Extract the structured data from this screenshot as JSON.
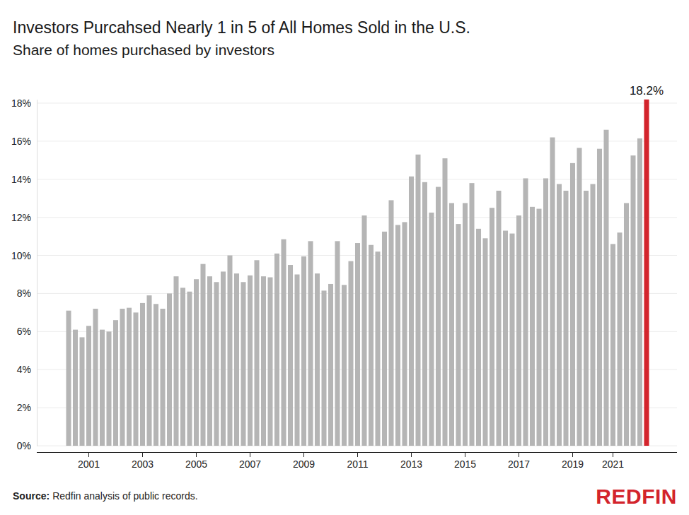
{
  "chart_data": {
    "type": "bar",
    "title": "Investors Purcahsed Nearly 1 in 5 of All Homes Sold in the U.S.",
    "subtitle": "Share of homes purchased by investors",
    "source_label": "Source:",
    "source": "Redfin analysis of public records.",
    "logo": "REDFIN",
    "categories": [
      null,
      null,
      null,
      "2001",
      null,
      null,
      null,
      null,
      null,
      null,
      null,
      "2003",
      null,
      null,
      null,
      null,
      null,
      null,
      null,
      "2005",
      null,
      null,
      null,
      null,
      null,
      null,
      null,
      "2007",
      null,
      null,
      null,
      null,
      null,
      null,
      null,
      "2009",
      null,
      null,
      null,
      null,
      null,
      null,
      null,
      "2011",
      null,
      null,
      null,
      null,
      null,
      null,
      null,
      "2013",
      null,
      null,
      null,
      null,
      null,
      null,
      null,
      "2015",
      null,
      null,
      null,
      null,
      null,
      null,
      null,
      "2017",
      null,
      null,
      null,
      null,
      null,
      null,
      null,
      "2019",
      null,
      null,
      null,
      null,
      null,
      "2021",
      null,
      null,
      null,
      null,
      null
    ],
    "values": [
      7.1,
      6.1,
      5.7,
      6.3,
      7.2,
      6.1,
      6.0,
      6.6,
      7.2,
      7.25,
      7.0,
      7.5,
      7.9,
      7.45,
      7.2,
      8.0,
      8.9,
      8.3,
      8.1,
      8.75,
      9.55,
      8.9,
      8.6,
      9.15,
      10.0,
      9.05,
      8.6,
      8.95,
      9.75,
      8.9,
      8.85,
      10.1,
      10.85,
      9.5,
      9.0,
      9.95,
      10.75,
      9.05,
      8.15,
      8.5,
      10.75,
      8.45,
      9.7,
      10.65,
      12.1,
      10.55,
      10.2,
      11.25,
      12.9,
      11.6,
      11.75,
      14.15,
      15.3,
      13.85,
      12.25,
      13.6,
      15.1,
      12.75,
      11.65,
      12.75,
      13.8,
      11.4,
      10.9,
      12.5,
      13.4,
      11.3,
      11.15,
      12.1,
      14.05,
      12.55,
      12.45,
      14.05,
      16.2,
      13.75,
      13.4,
      14.85,
      15.65,
      13.4,
      13.75,
      15.6,
      16.6,
      10.6,
      11.2,
      12.75,
      15.25,
      16.15,
      18.2
    ],
    "value_labels": [
      null,
      null,
      null,
      null,
      null,
      null,
      null,
      null,
      null,
      null,
      null,
      null,
      null,
      null,
      null,
      null,
      null,
      null,
      null,
      null,
      null,
      null,
      null,
      null,
      null,
      null,
      null,
      null,
      null,
      null,
      null,
      null,
      null,
      null,
      null,
      null,
      null,
      null,
      null,
      null,
      null,
      null,
      null,
      null,
      null,
      null,
      null,
      null,
      null,
      null,
      null,
      null,
      null,
      null,
      null,
      null,
      null,
      null,
      null,
      null,
      null,
      null,
      null,
      null,
      null,
      null,
      null,
      null,
      null,
      null,
      null,
      null,
      null,
      null,
      null,
      null,
      null,
      null,
      null,
      null,
      null,
      null,
      null,
      null,
      null,
      null,
      "18.2%"
    ],
    "data_labels": true,
    "colors": [
      "#b5b5b5",
      "#b5b5b5",
      "#b5b5b5",
      "#b5b5b5",
      "#b5b5b5",
      "#b5b5b5",
      "#b5b5b5",
      "#b5b5b5",
      "#b5b5b5",
      "#b5b5b5",
      "#b5b5b5",
      "#b5b5b5",
      "#b5b5b5",
      "#b5b5b5",
      "#b5b5b5",
      "#b5b5b5",
      "#b5b5b5",
      "#b5b5b5",
      "#b5b5b5",
      "#b5b5b5",
      "#b5b5b5",
      "#b5b5b5",
      "#b5b5b5",
      "#b5b5b5",
      "#b5b5b5",
      "#b5b5b5",
      "#b5b5b5",
      "#b5b5b5",
      "#b5b5b5",
      "#b5b5b5",
      "#b5b5b5",
      "#b5b5b5",
      "#b5b5b5",
      "#b5b5b5",
      "#b5b5b5",
      "#b5b5b5",
      "#b5b5b5",
      "#b5b5b5",
      "#b5b5b5",
      "#b5b5b5",
      "#b5b5b5",
      "#b5b5b5",
      "#b5b5b5",
      "#b5b5b5",
      "#b5b5b5",
      "#b5b5b5",
      "#b5b5b5",
      "#b5b5b5",
      "#b5b5b5",
      "#b5b5b5",
      "#b5b5b5",
      "#b5b5b5",
      "#b5b5b5",
      "#b5b5b5",
      "#b5b5b5",
      "#b5b5b5",
      "#b5b5b5",
      "#b5b5b5",
      "#b5b5b5",
      "#b5b5b5",
      "#b5b5b5",
      "#b5b5b5",
      "#b5b5b5",
      "#b5b5b5",
      "#b5b5b5",
      "#b5b5b5",
      "#b5b5b5",
      "#b5b5b5",
      "#b5b5b5",
      "#b5b5b5",
      "#b5b5b5",
      "#b5b5b5",
      "#b5b5b5",
      "#b5b5b5",
      "#b5b5b5",
      "#b5b5b5",
      "#b5b5b5",
      "#b5b5b5",
      "#b5b5b5",
      "#b5b5b5",
      "#b5b5b5",
      "#b5b5b5",
      "#b5b5b5",
      "#b5b5b5",
      "#b5b5b5",
      "#b5b5b5",
      "#d3242c"
    ],
    "ylim": [
      0,
      18.2
    ],
    "yticks": [
      {
        "value": 0,
        "label": "0%"
      },
      {
        "value": 2,
        "label": "2%"
      },
      {
        "value": 4,
        "label": "4%"
      },
      {
        "value": 6,
        "label": "6%"
      },
      {
        "value": 8,
        "label": "8%"
      },
      {
        "value": 10,
        "label": "10%"
      },
      {
        "value": 12,
        "label": "12%"
      },
      {
        "value": 14,
        "label": "14%"
      },
      {
        "value": 16,
        "label": "16%"
      },
      {
        "value": 18,
        "label": "18%"
      }
    ],
    "grid": true
  }
}
